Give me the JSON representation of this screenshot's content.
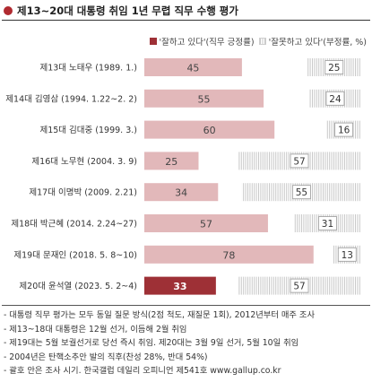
{
  "title": "제13~20대 대통령 취임 1년 무렵 직무 수행 평가",
  "legend": {
    "positive": "'잘하고 있다'(직무 긍정률)",
    "negative": "'잘못하고 있다'(부정률, %)"
  },
  "colors": {
    "positive_bar": "#e2b8ba",
    "highlight_bar": "#9e3036",
    "negative_hatch": "#c8c8c8",
    "title_dot": "#b02a30",
    "label_box_border": "#9a9a9a"
  },
  "chart_data": {
    "type": "bar",
    "orientation": "horizontal",
    "stacked": true,
    "categories": [
      "제13대 노태우 (1989. 1.)",
      "제14대 김영삼 (1994. 1.22~2. 2)",
      "제15대 김대중 (1999. 3.)",
      "제16대 노무현 (2004. 3. 9)",
      "제17대 이명박 (2009. 2.21)",
      "제18대 박근혜 (2014. 2.24~27)",
      "제19대 문재인 (2018. 5. 8~10)",
      "제20대 윤석열 (2023. 5. 2~4)"
    ],
    "series": [
      {
        "name": "'잘하고 있다'(직무 긍정률)",
        "values": [
          45,
          55,
          60,
          25,
          34,
          57,
          78,
          33
        ]
      },
      {
        "name": "'잘못하고 있다'(부정률, %)",
        "values": [
          25,
          24,
          16,
          57,
          55,
          31,
          13,
          57
        ]
      }
    ],
    "highlight_index": 7,
    "xlim": [
      0,
      100
    ],
    "grid": false
  },
  "notes": [
    "- 대통령 직무 평가는 모두 동일 질문 방식(2점 척도, 재질문 1회), 2012년부터 매주 조사",
    "- 제13~18대 대통령은 12월 선거, 이듬해 2월 취임",
    "- 제19대는 5월 보궐선거로 당선 즉시 취임. 제20대는 3월 9일 선거, 5월 10일 취임",
    "- 2004년은 탄핵소추안 발의 직후(찬성 28%, 반대 54%)",
    "- 괄호 안은 조사 시기. 한국갤럽 데일리 오피니언 제541호 www.gallup.co.kr"
  ]
}
